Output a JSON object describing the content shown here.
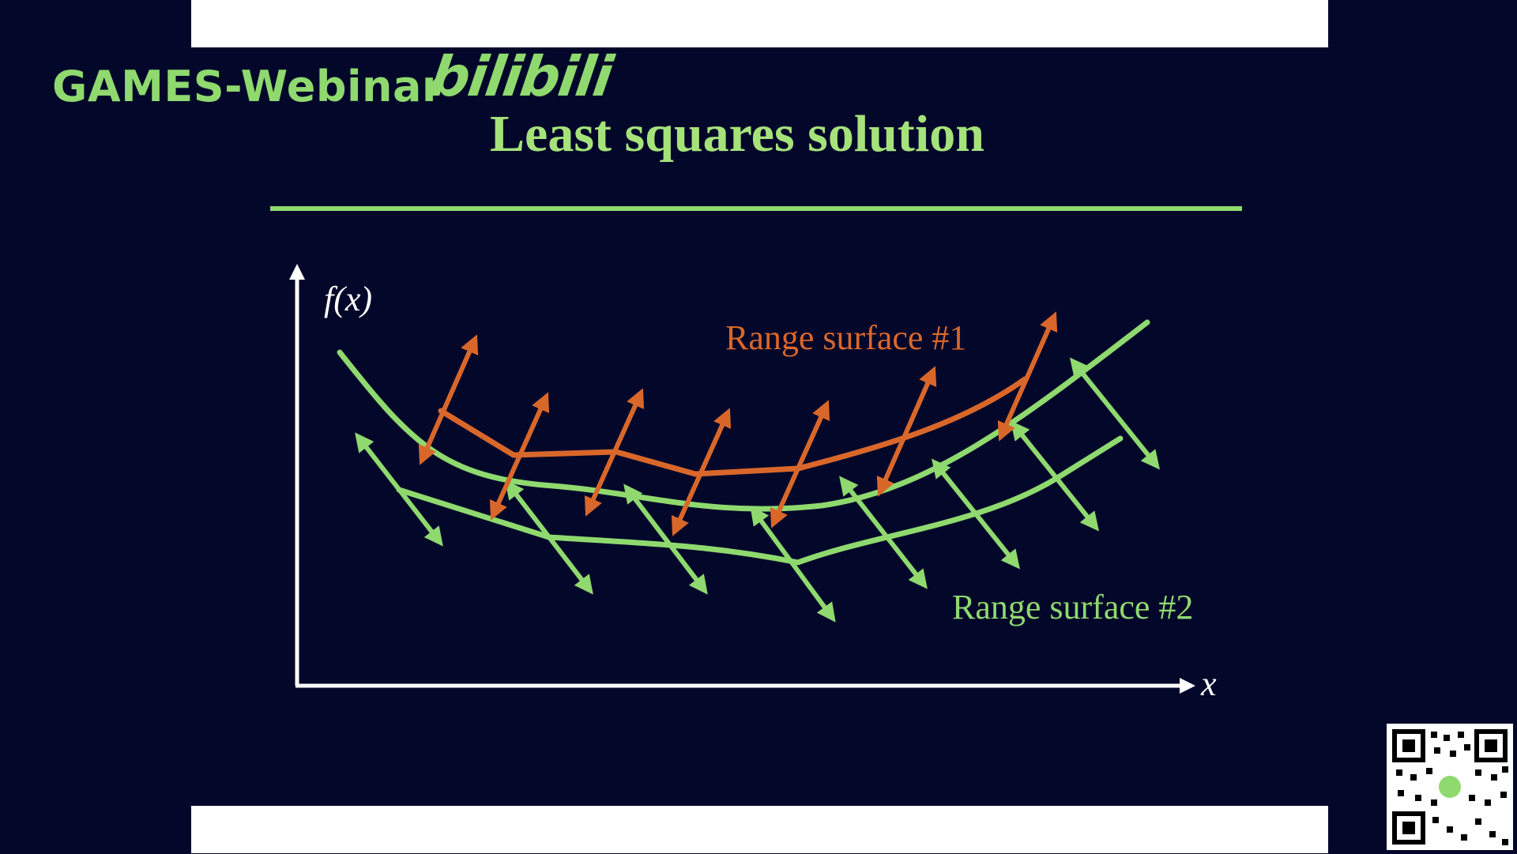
{
  "watermark": {
    "text": "GAMES-Webinar",
    "logo_text": "bilibili"
  },
  "slide": {
    "title": "Least squares solution",
    "y_axis_label": "f(x)",
    "x_axis_label": "x",
    "label_surface_1": "Range surface #1",
    "label_surface_2": "Range surface #2"
  },
  "colors": {
    "background": "#03082a",
    "green": "#8fd96f",
    "orange": "#d9672a",
    "axis": "#ffffff"
  },
  "qr": {
    "icon": "qr-code-icon"
  }
}
